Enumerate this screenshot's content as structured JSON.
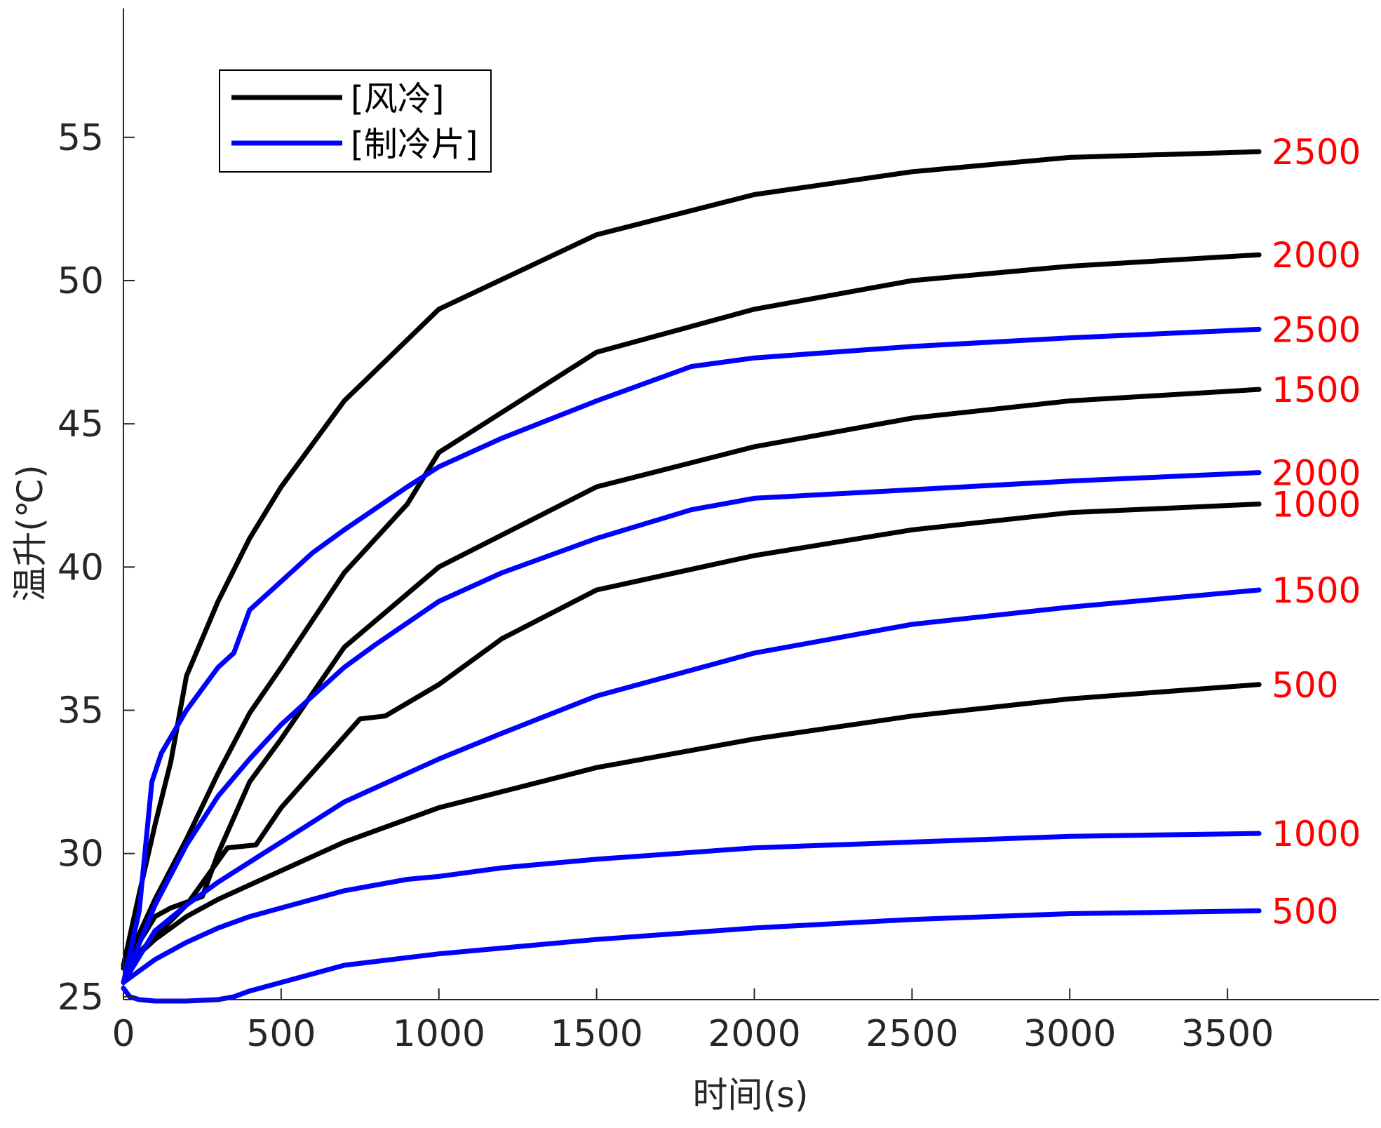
{
  "chart_data": {
    "type": "line",
    "xlabel": "时间(s)",
    "ylabel": "温升(℃)",
    "xlim": [
      0,
      3980
    ],
    "ylim": [
      24.9,
      59.5
    ],
    "xticks": [
      0,
      500,
      1000,
      1500,
      2000,
      2500,
      3000,
      3500
    ],
    "yticks": [
      25,
      30,
      35,
      40,
      45,
      50,
      55
    ],
    "grid": false,
    "legend_position": "top-left",
    "legend": [
      {
        "label": "[风冷]",
        "color": "#000000"
      },
      {
        "label": "[制冷片]",
        "color": "#0000ff"
      }
    ],
    "series": [
      {
        "group": "[风冷]",
        "color": "#000000",
        "end_label": "2500",
        "x": [
          0,
          50,
          100,
          150,
          200,
          300,
          400,
          500,
          700,
          1000,
          1500,
          2000,
          2500,
          3000,
          3600
        ],
        "y": [
          26.1,
          28.6,
          31.0,
          33.2,
          36.2,
          38.8,
          41.0,
          42.8,
          45.8,
          49.0,
          51.6,
          53.0,
          53.8,
          54.3,
          54.5
        ]
      },
      {
        "group": "[风冷]",
        "color": "#000000",
        "end_label": "2000",
        "x": [
          0,
          100,
          200,
          300,
          400,
          500,
          700,
          900,
          1000,
          1500,
          2000,
          2500,
          3000,
          3600
        ],
        "y": [
          26.0,
          28.4,
          30.5,
          32.8,
          34.9,
          36.5,
          39.8,
          42.2,
          44.0,
          47.5,
          49.0,
          50.0,
          50.5,
          50.9
        ]
      },
      {
        "group": "[风冷]",
        "color": "#000000",
        "end_label": "1500",
        "x": [
          0,
          100,
          150,
          250,
          300,
          400,
          500,
          700,
          1000,
          1500,
          2000,
          2500,
          3000,
          3600
        ],
        "y": [
          26.0,
          27.8,
          28.1,
          28.5,
          30.0,
          32.5,
          34.0,
          37.2,
          40.0,
          42.8,
          44.2,
          45.2,
          45.8,
          46.2
        ]
      },
      {
        "group": "[风冷]",
        "color": "#000000",
        "end_label": "1000",
        "x": [
          0,
          200,
          330,
          420,
          500,
          750,
          830,
          1000,
          1200,
          1500,
          2000,
          2500,
          3000,
          3600
        ],
        "y": [
          26.0,
          28.2,
          30.2,
          30.3,
          31.6,
          34.7,
          34.8,
          35.9,
          37.5,
          39.2,
          40.4,
          41.3,
          41.9,
          42.2
        ]
      },
      {
        "group": "[风冷]",
        "color": "#000000",
        "end_label": "500",
        "x": [
          0,
          100,
          200,
          300,
          400,
          500,
          700,
          1000,
          1500,
          2000,
          2500,
          3000,
          3600
        ],
        "y": [
          26.0,
          27.0,
          27.8,
          28.4,
          28.9,
          29.4,
          30.4,
          31.6,
          33.0,
          34.0,
          34.8,
          35.4,
          35.9
        ]
      },
      {
        "group": "[制冷片]",
        "color": "#0000ff",
        "end_label": "2500",
        "x": [
          0,
          50,
          90,
          120,
          200,
          300,
          350,
          400,
          500,
          600,
          700,
          900,
          1000,
          1200,
          1500,
          1800,
          2000,
          2500,
          3000,
          3600
        ],
        "y": [
          25.5,
          28.0,
          32.5,
          33.5,
          35.0,
          36.5,
          37.0,
          38.5,
          39.5,
          40.5,
          41.3,
          42.8,
          43.5,
          44.5,
          45.8,
          47.0,
          47.3,
          47.7,
          48.0,
          48.3
        ]
      },
      {
        "group": "[制冷片]",
        "color": "#0000ff",
        "end_label": "2000",
        "x": [
          0,
          100,
          200,
          300,
          400,
          500,
          600,
          700,
          800,
          1000,
          1200,
          1500,
          1800,
          2000,
          2500,
          3000,
          3600
        ],
        "y": [
          25.5,
          28.2,
          30.3,
          32.0,
          33.3,
          34.5,
          35.5,
          36.5,
          37.3,
          38.8,
          39.8,
          41.0,
          42.0,
          42.4,
          42.7,
          43.0,
          43.3
        ]
      },
      {
        "group": "[制冷片]",
        "color": "#0000ff",
        "end_label": "1500",
        "x": [
          0,
          100,
          200,
          300,
          400,
          500,
          700,
          1000,
          1200,
          1500,
          2000,
          2500,
          3000,
          3600
        ],
        "y": [
          25.5,
          27.3,
          28.2,
          29.0,
          29.7,
          30.4,
          31.8,
          33.3,
          34.2,
          35.5,
          37.0,
          38.0,
          38.6,
          39.2
        ]
      },
      {
        "group": "[制冷片]",
        "color": "#0000ff",
        "end_label": "1000",
        "x": [
          0,
          100,
          200,
          300,
          400,
          500,
          700,
          900,
          1000,
          1200,
          1500,
          2000,
          2500,
          3000,
          3600
        ],
        "y": [
          25.5,
          26.3,
          26.9,
          27.4,
          27.8,
          28.1,
          28.7,
          29.1,
          29.2,
          29.5,
          29.8,
          30.2,
          30.4,
          30.6,
          30.7
        ]
      },
      {
        "group": "[制冷片]",
        "color": "#0000ff",
        "end_label": "500",
        "x": [
          0,
          20,
          50,
          100,
          150,
          200,
          300,
          350,
          400,
          500,
          700,
          1000,
          1500,
          2000,
          2500,
          3000,
          3600
        ],
        "y": [
          25.3,
          25.0,
          24.9,
          24.85,
          24.85,
          24.85,
          24.9,
          25.0,
          25.2,
          25.5,
          26.1,
          26.5,
          27.0,
          27.4,
          27.7,
          27.9,
          28.0
        ]
      }
    ]
  }
}
